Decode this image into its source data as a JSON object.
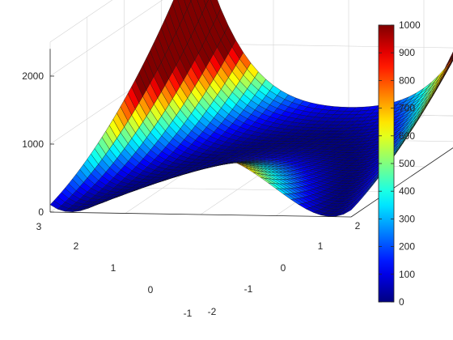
{
  "chart_data": {
    "type": "surface",
    "title": "",
    "xlabel": "",
    "ylabel": "",
    "zlabel": "",
    "function": "f(x,y) = 100*(y - x^2)^2 + (1 - x)^2",
    "x_range": [
      -2,
      2
    ],
    "y_range": [
      -1,
      3
    ],
    "zlim": [
      0,
      2500
    ],
    "x_ticks": [
      "-2",
      "-1",
      "0",
      "1",
      "2"
    ],
    "y_ticks": [
      "-1",
      "0",
      "1",
      "2",
      "3"
    ],
    "z_ticks": [
      "0",
      "1000",
      "2000"
    ],
    "x_tick_values": [
      -2,
      -1,
      0,
      1,
      2
    ],
    "y_tick_values": [
      -1,
      0,
      1,
      2,
      3
    ],
    "z_tick_values": [
      0,
      1000,
      2000
    ],
    "colormap": "jet",
    "color_limits": [
      0,
      1000
    ],
    "colorbar_ticks": [
      "0",
      "100",
      "200",
      "300",
      "400",
      "500",
      "600",
      "700",
      "800",
      "900",
      "1000"
    ],
    "colorbar_tick_values": [
      0,
      100,
      200,
      300,
      400,
      500,
      600,
      700,
      800,
      900,
      1000
    ],
    "grid": true,
    "mesh_edges": "black"
  }
}
